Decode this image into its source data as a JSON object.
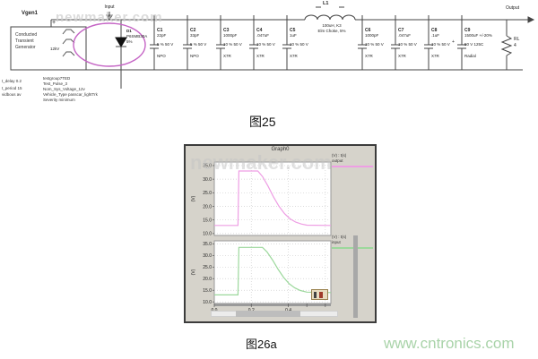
{
  "watermarks": {
    "schematic": "newmaker.com",
    "graph": "newmaker.com",
    "site": "www.cntronics.com"
  },
  "captions": {
    "fig25": "图25",
    "fig26a": "图26a"
  },
  "schematic": {
    "input_label": "Input",
    "output_label": "Output",
    "generator": {
      "ref": "Vgen1",
      "name_lines": [
        "Conducted",
        "Transient",
        "Generator"
      ],
      "inner_label": "12kV",
      "plus": "+"
    },
    "diode": {
      "ref": "D1",
      "part": "P6SMB30A",
      "tolerance": "5%"
    },
    "inductor": {
      "ref": "L1",
      "value": "100uH, K3",
      "desc": "Elm Choke, 5%"
    },
    "capacitors": [
      {
        "ref": "C1",
        "value": "22pF",
        "rating": "5 % 50 V",
        "type": "NPO"
      },
      {
        "ref": "C2",
        "value": "33pF",
        "rating": "5 % 50 V",
        "type": "NPO"
      },
      {
        "ref": "C3",
        "value": "1000pF",
        "rating": "10 % 50 V",
        "type": "X7R"
      },
      {
        "ref": "C4",
        "value": ".047uF",
        "rating": "10 % 50 V",
        "type": "X7R"
      },
      {
        "ref": "C5",
        "value": "1uF",
        "rating": "10 % 50 V",
        "type": "X7R"
      },
      {
        "ref": "C6",
        "value": "1000pF",
        "rating": "10 % 50 V",
        "type": "X7R"
      },
      {
        "ref": "C7",
        "value": ".047uF",
        "rating": "10 % 50 V",
        "type": "X7R"
      },
      {
        "ref": "C8",
        "value": ".1uF",
        "rating": "10 % 50 V",
        "type": "X7R"
      },
      {
        "ref": "C9",
        "value": "1500uF +/-20%",
        "rating": "50 V 125C",
        "type": "Radial"
      }
    ],
    "c9_polarity": "+",
    "load": {
      "ref": "RL",
      "value": "4"
    },
    "params_left": [
      "t_delay 0.2",
      "t_period 15",
      "vidbous av"
    ],
    "params_right": [
      "testgroup7TED",
      "Test_Pulse_3",
      "Nom_Sys_Voltage_12v",
      "Vehicle_Type passcar_lightTrk",
      "Severity minimum"
    ]
  },
  "chart_data": [
    {
      "type": "line",
      "title": "Graph0",
      "legend": "(V) : t(s)",
      "ylabel": "(V)",
      "xlim": [
        0,
        0.63
      ],
      "ylim": [
        9.3,
        36.3
      ],
      "yticks": [
        35,
        30,
        25,
        20,
        15,
        10
      ],
      "xgrid": [
        0.2,
        0.4,
        0.6
      ],
      "xticks_labeled": [
        0,
        0.2,
        0.4
      ],
      "xticks_minor": [
        0.5,
        0.6
      ],
      "grid": "dotted",
      "series": [
        {
          "name": "output",
          "color": "#ee9ee4",
          "x": [
            0,
            0.128,
            0.133,
            0.235,
            0.26,
            0.29,
            0.32,
            0.35,
            0.38,
            0.41,
            0.44,
            0.47,
            0.5,
            0.63
          ],
          "y": [
            13,
            13,
            33,
            33,
            31,
            27.5,
            23.5,
            20,
            17.3,
            15.4,
            14.2,
            13.5,
            13.1,
            13
          ]
        }
      ]
    },
    {
      "type": "line",
      "title": "Graph0",
      "legend": "(V) : t(s)",
      "ylabel": "(V)",
      "xlim": [
        0,
        0.63
      ],
      "ylim": [
        9.3,
        36.3
      ],
      "yticks": [
        35,
        30,
        25,
        20,
        15,
        10
      ],
      "xgrid": [
        0.2,
        0.4,
        0.6
      ],
      "xticks_labeled": [
        0,
        0.2,
        0.4
      ],
      "xticks_minor": [
        0.5,
        0.6
      ],
      "grid": "dotted",
      "series": [
        {
          "name": "input",
          "color": "#9cd89c",
          "x": [
            0,
            0.128,
            0.133,
            0.26,
            0.285,
            0.315,
            0.345,
            0.375,
            0.405,
            0.435,
            0.465,
            0.5,
            0.63
          ],
          "y": [
            13,
            13,
            33.5,
            33.5,
            31.5,
            28,
            24,
            20.5,
            17.8,
            16,
            14.9,
            14.2,
            14
          ]
        }
      ]
    }
  ]
}
